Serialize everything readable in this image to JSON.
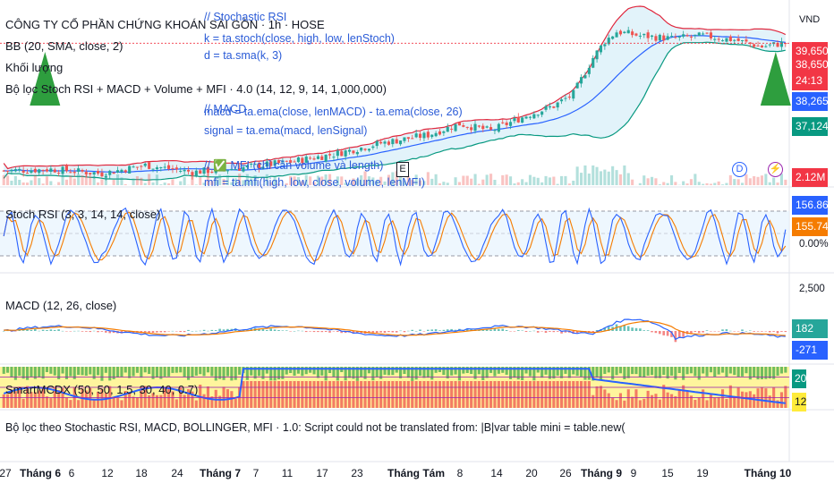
{
  "header": {
    "title": "CÔNG TY CỔ PHẦN CHỨNG KHOÁN SÀI GÒN · 1h · HOSE",
    "bb": "BB (20, SMA, close, 2)",
    "volume_label": "Khối lượng",
    "filter_label": "Bộ lọc Stoch RSI + MACD + Volume + MFI · 4.0 (14, 12, 9, 14, 1,000,000)"
  },
  "code_overlay": {
    "lines": [
      "// Stochastic RSI",
      "k = ta.stoch(close, high, low, lenStoch)",
      "d = ta.sma(k, 3)",
      "// MACD",
      "macd = ta.ema(close, lenMACD) - ta.ema(close, 26)",
      "signal = ta.ema(macd, lenSignal)",
      "// ✅ MFI (chỉ cần volume và length)",
      "mfi = ta.mfi(high, low, close, volume, lenMFI)"
    ]
  },
  "price_axis": {
    "currency": "VND",
    "badges": [
      {
        "text": "39,650",
        "color": "#f23645"
      },
      {
        "text": "38,650",
        "color": "#f23645"
      },
      {
        "text": "24:13",
        "color": "#f23645"
      },
      {
        "text": "38,265",
        "color": "#2962ff"
      },
      {
        "text": "37,124",
        "color": "#089981"
      },
      {
        "text": "2.12M",
        "color": "#f23645"
      }
    ]
  },
  "stoch_panel": {
    "label": "Stoch RSI (3, 3, 14, 14, close)",
    "badges": [
      {
        "text": "156.86%",
        "color": "#2962ff"
      },
      {
        "text": "155.74%",
        "color": "#f57c00"
      }
    ],
    "zero_label": "0.00%"
  },
  "macd_panel": {
    "label": "MACD (12, 26, close)",
    "top_label": "2,500",
    "badges": [
      {
        "text": "182",
        "color": "#26a69a"
      },
      {
        "text": "-271",
        "color": "#2962ff"
      }
    ]
  },
  "smartmcdx_panel": {
    "label": "SmartMCDX (50, 50, 1.5, 30, 40, 0.7)",
    "badges": [
      {
        "text": "20",
        "color": "#089981",
        "text_color": "#ffffff"
      },
      {
        "text": "12",
        "color": "#ffeb3b",
        "text_color": "#131722"
      }
    ]
  },
  "error_message": "Bộ lọc theo Stochastic RSI, MACD, BOLLINGER, MFI · 1.0: Script could not be translated from: |B|var table mini = table.new(",
  "events": {
    "e": "E",
    "d": "D",
    "bolt": "⚡"
  },
  "x_axis": {
    "ticks": [
      {
        "label": "27",
        "bold": false
      },
      {
        "label": "Tháng 6",
        "bold": true
      },
      {
        "label": "6",
        "bold": false
      },
      {
        "label": "12",
        "bold": false
      },
      {
        "label": "18",
        "bold": false
      },
      {
        "label": "24",
        "bold": false
      },
      {
        "label": "Tháng 7",
        "bold": true
      },
      {
        "label": "7",
        "bold": false
      },
      {
        "label": "11",
        "bold": false
      },
      {
        "label": "17",
        "bold": false
      },
      {
        "label": "23",
        "bold": false
      },
      {
        "label": "Tháng Tám",
        "bold": true
      },
      {
        "label": "8",
        "bold": false
      },
      {
        "label": "14",
        "bold": false
      },
      {
        "label": "20",
        "bold": false
      },
      {
        "label": "26",
        "bold": false
      },
      {
        "label": "Tháng 9",
        "bold": true
      },
      {
        "label": "9",
        "bold": false
      },
      {
        "label": "15",
        "bold": false
      },
      {
        "label": "19",
        "bold": false
      },
      {
        "label": "Tháng 10",
        "bold": true
      }
    ]
  },
  "colors": {
    "up": "#26a69a",
    "down": "#ef5350",
    "bb_upper": "#e0283e",
    "bb_lower": "#089981",
    "bb_basis": "#2962ff",
    "bb_fill": "#d6eef8",
    "stoch_k": "#2962ff",
    "stoch_d": "#f57c00",
    "macd": "#2962ff",
    "signal": "#f57c00",
    "signal_arrow": "#2e9e3e"
  },
  "chart_data": {
    "type": "candlestick",
    "series_points": 200,
    "price_path": [
      [
        0,
        29.4
      ],
      [
        12,
        29.5
      ],
      [
        25,
        29.2
      ],
      [
        36,
        29.8
      ],
      [
        48,
        29.3
      ],
      [
        60,
        29.6
      ],
      [
        72,
        30.0
      ],
      [
        84,
        30.6
      ],
      [
        96,
        31.4
      ],
      [
        108,
        32.0
      ],
      [
        116,
        32.8
      ],
      [
        124,
        32.3
      ],
      [
        133,
        33.4
      ],
      [
        140,
        34.1
      ],
      [
        145,
        35.0
      ],
      [
        150,
        37.6
      ],
      [
        153,
        38.8
      ],
      [
        156,
        39.5
      ],
      [
        162,
        39.2
      ],
      [
        170,
        39.0
      ],
      [
        178,
        39.2
      ],
      [
        186,
        38.9
      ],
      [
        193,
        38.4
      ],
      [
        199,
        38.7
      ]
    ],
    "price_range": [
      29.0,
      40.5
    ],
    "arrows": [
      {
        "at": 0.055,
        "direction": "up"
      },
      {
        "at": 0.985,
        "direction": "up"
      }
    ]
  }
}
